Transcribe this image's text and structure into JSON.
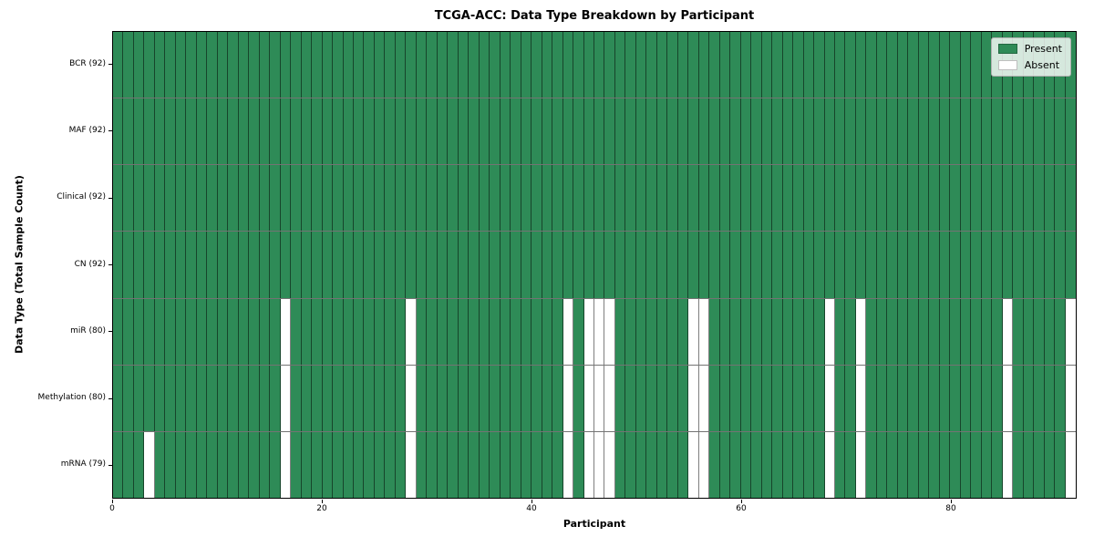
{
  "chart_data": {
    "type": "heatmap",
    "title": "TCGA-ACC: Data Type Breakdown by Participant",
    "xlabel": "Participant",
    "ylabel": "Data Type (Total Sample Count)",
    "n_participants": 92,
    "x_ticks": [
      0,
      20,
      40,
      60,
      80
    ],
    "x_range": [
      0,
      92
    ],
    "grid": true,
    "legend_position": "upper right",
    "legend": [
      {
        "label": "Present",
        "color": "#2e8b57"
      },
      {
        "label": "Absent",
        "color": "#ffffff"
      }
    ],
    "colors": {
      "present": "#2e8b57",
      "absent": "#ffffff",
      "cell_edge": "rgba(0,0,0,0.5)",
      "spine": "#000000"
    },
    "rows": [
      {
        "label": "BCR (92)",
        "present_count": 92,
        "absent_participants": []
      },
      {
        "label": "MAF (92)",
        "present_count": 92,
        "absent_participants": []
      },
      {
        "label": "Clinical (92)",
        "present_count": 92,
        "absent_participants": []
      },
      {
        "label": "CN (92)",
        "present_count": 92,
        "absent_participants": []
      },
      {
        "label": "miR (80)",
        "present_count": 80,
        "absent_participants": [
          16,
          28,
          43,
          45,
          46,
          47,
          55,
          56,
          68,
          71,
          85,
          91
        ]
      },
      {
        "label": "Methylation (80)",
        "present_count": 80,
        "absent_participants": [
          16,
          28,
          43,
          45,
          46,
          47,
          55,
          56,
          68,
          71,
          85,
          91
        ]
      },
      {
        "label": "mRNA (79)",
        "present_count": 79,
        "absent_participants": [
          3,
          16,
          28,
          43,
          45,
          46,
          47,
          55,
          56,
          68,
          71,
          85,
          91
        ]
      }
    ]
  }
}
